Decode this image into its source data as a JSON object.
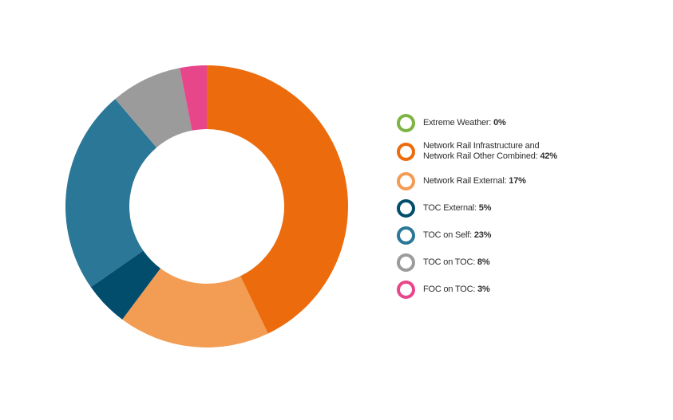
{
  "chart_data": {
    "type": "pie",
    "title": "",
    "legend_position": "right",
    "slices": [
      {
        "label": "Network Rail Infrastructure and Network Rail Other Combined",
        "value": 42,
        "color": "#ec6b0c"
      },
      {
        "label": "Network Rail External",
        "value": 17,
        "color": "#f39c54"
      },
      {
        "label": "TOC External",
        "value": 5,
        "color": "#024c6c"
      },
      {
        "label": "TOC on Self",
        "value": 23,
        "color": "#2b7797"
      },
      {
        "label": "TOC on TOC",
        "value": 8,
        "color": "#9b9b9b"
      },
      {
        "label": "FOC on TOC",
        "value": 3,
        "color": "#e8468a"
      }
    ],
    "legend": [
      {
        "label": "Extreme Weather:",
        "value_text": "0%",
        "color": "#7db443",
        "lines": [
          "Extreme Weather:"
        ]
      },
      {
        "label": "Network Rail Infrastructure and Network Rail Other Combined:",
        "value_text": "42%",
        "color": "#ec6b0c",
        "lines": [
          "Network Rail Infrastructure and",
          "Network Rail Other Combined:"
        ]
      },
      {
        "label": "Network Rail External:",
        "value_text": "17%",
        "color": "#f39c54",
        "lines": [
          "Network Rail External:"
        ]
      },
      {
        "label": "TOC External:",
        "value_text": "5%",
        "color": "#024c6c",
        "lines": [
          "TOC External:"
        ]
      },
      {
        "label": "TOC on Self:",
        "value_text": "23%",
        "color": "#2b7797",
        "lines": [
          "TOC on Self:"
        ]
      },
      {
        "label": "TOC on TOC:",
        "value_text": "8%",
        "color": "#9b9b9b",
        "lines": [
          "TOC on TOC:"
        ]
      },
      {
        "label": "FOC on TOC:",
        "value_text": "3%",
        "color": "#e8468a",
        "lines": [
          "FOC on TOC:"
        ]
      }
    ]
  }
}
